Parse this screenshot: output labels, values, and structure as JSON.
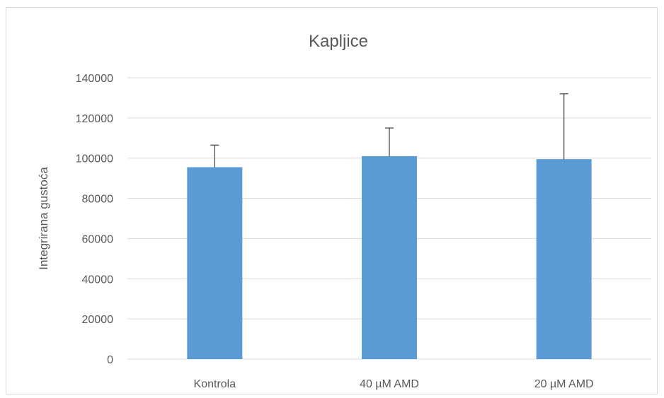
{
  "chart_data": {
    "type": "bar",
    "title": "Kapljice",
    "xlabel": "",
    "ylabel": "Integrirana gustoća",
    "categories": [
      "Kontrola",
      "40 µM AMD",
      "20 µM AMD"
    ],
    "values": [
      95500,
      101000,
      99500
    ],
    "error_upper": [
      11000,
      14000,
      32500
    ],
    "ylim": [
      0,
      140000
    ],
    "yticks": [
      "0",
      "20000",
      "40000",
      "60000",
      "80000",
      "100000",
      "120000",
      "140000"
    ],
    "grid": true,
    "legend": "none",
    "colors": {
      "bar": "#5b9bd5",
      "gridline": "#d9d9d9",
      "text": "#595959",
      "error_bar": "#404040"
    }
  }
}
